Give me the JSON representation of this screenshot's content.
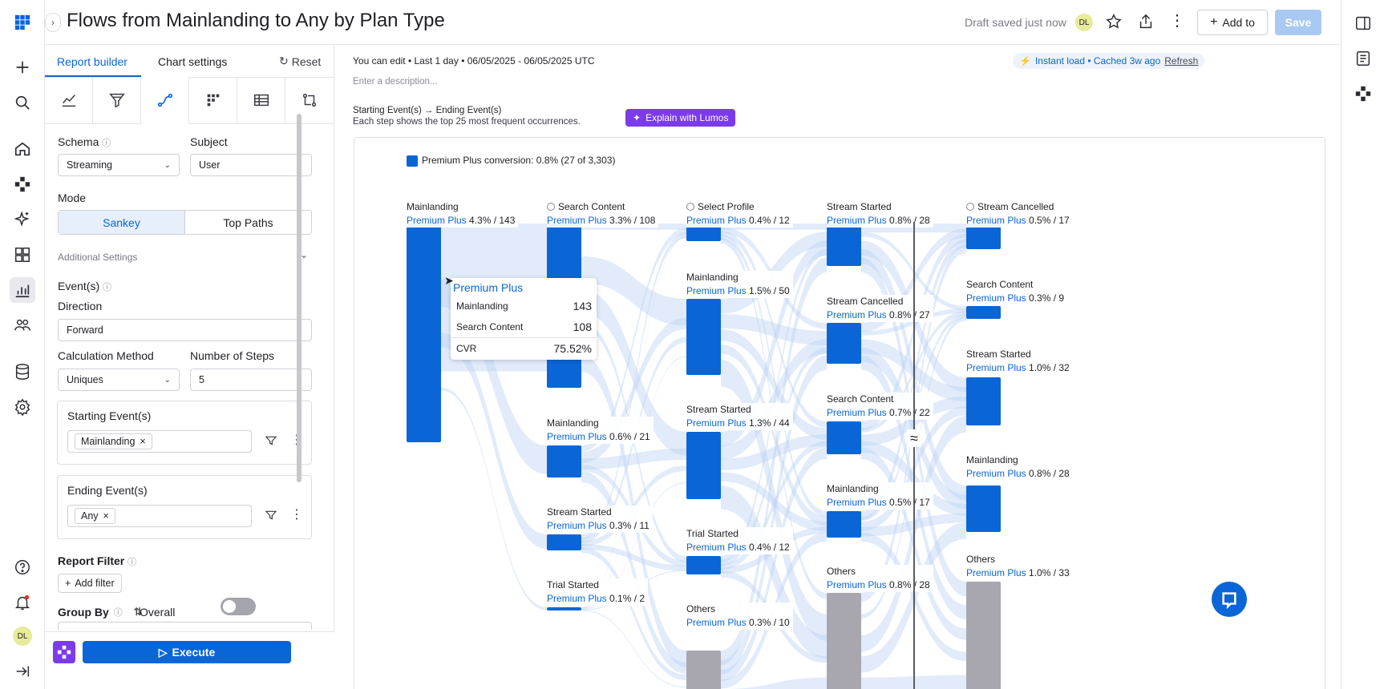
{
  "header": {
    "title": "Flows from Mainlanding to Any by Plan Type",
    "draft_status": "Draft saved just now",
    "avatar_initials": "DL",
    "add_to_label": "Add to",
    "save_label": "Save"
  },
  "leftnav": {
    "icons": [
      "apps-grid-icon",
      "plus-icon",
      "search-icon",
      "home-icon",
      "cluster-icon",
      "sparkle-icon",
      "dashboard-icon",
      "chart-icon",
      "people-icon",
      "database-icon",
      "settings-icon",
      "help-icon",
      "bell-icon",
      "collapse-icon"
    ],
    "avatar_initials": "DL"
  },
  "sidepanel": {
    "tabs": [
      "Report builder",
      "Chart settings"
    ],
    "reset_label": "Reset",
    "schema_label": "Schema",
    "schema_value": "Streaming",
    "subject_label": "Subject",
    "subject_value": "User",
    "mode_label": "Mode",
    "mode_options": [
      "Sankey",
      "Top Paths"
    ],
    "additional_settings": "Additional Settings",
    "events_label": "Event(s)",
    "direction_label": "Direction",
    "direction_value": "Forward",
    "calc_label": "Calculation Method",
    "calc_value": "Uniques",
    "steps_label": "Number of Steps",
    "steps_value": "5",
    "starting_label": "Starting Event(s)",
    "starting_chip": "Mainlanding",
    "ending_label": "Ending Event(s)",
    "ending_chip": "Any",
    "report_filter_label": "Report Filter",
    "add_filter_label": "Add filter",
    "group_by_label": "Group By",
    "overall_label": "Overall",
    "execute_label": "Execute"
  },
  "main": {
    "edit_info": "You can edit • Last 1 day • 06/05/2025 - 06/05/2025 UTC",
    "instant_load": "Instant load • Cached 3w ago",
    "refresh_label": "Refresh",
    "description_placeholder": "Enter a description...",
    "flow_title_a": "Starting Event(s)",
    "flow_title_b": "Ending Event(s)",
    "flow_subtitle": "Each step shows the top 25 most frequent occurrences.",
    "explain_label": "Explain with Lumos"
  },
  "chart_data": {
    "type": "sankey",
    "legend": "Premium Plus conversion: 0.8% (27 of 3,303)",
    "series_name": "Premium Plus",
    "colors": {
      "node": "#0a66d6",
      "others": "#a8a7b0",
      "link": "#bcd3f3"
    },
    "steps": [
      [
        {
          "name": "Mainlanding",
          "pct": "4.3%",
          "count": "143"
        }
      ],
      [
        {
          "name": "Search Content",
          "pct": "3.3%",
          "count": "108"
        },
        {
          "name": "Mainlanding",
          "pct": "0.6%",
          "count": "21"
        },
        {
          "name": "Stream Started",
          "pct": "0.3%",
          "count": "11"
        },
        {
          "name": "Trial Started",
          "pct": "0.1%",
          "count": "2"
        }
      ],
      [
        {
          "name": "Select Profile",
          "pct": "0.4%",
          "count": "12"
        },
        {
          "name": "Mainlanding",
          "pct": "1.5%",
          "count": "50"
        },
        {
          "name": "Stream Started",
          "pct": "1.3%",
          "count": "44"
        },
        {
          "name": "Trial Started",
          "pct": "0.4%",
          "count": "12"
        },
        {
          "name": "Others",
          "pct": "0.3%",
          "count": "10"
        }
      ],
      [
        {
          "name": "Stream Started",
          "pct": "0.8%",
          "count": "28"
        },
        {
          "name": "Stream Cancelled",
          "pct": "0.8%",
          "count": "27"
        },
        {
          "name": "Search Content",
          "pct": "0.7%",
          "count": "22"
        },
        {
          "name": "Mainlanding",
          "pct": "0.5%",
          "count": "17"
        },
        {
          "name": "Others",
          "pct": "0.8%",
          "count": "28"
        }
      ],
      [
        {
          "name": "Stream Cancelled",
          "pct": "0.5%",
          "count": "17"
        },
        {
          "name": "Search Content",
          "pct": "0.3%",
          "count": "9"
        },
        {
          "name": "Stream Started",
          "pct": "1.0%",
          "count": "32"
        },
        {
          "name": "Mainlanding",
          "pct": "0.8%",
          "count": "28"
        },
        {
          "name": "Others",
          "pct": "1.0%",
          "count": "33"
        }
      ]
    ],
    "tooltip": {
      "title": "Premium Plus",
      "rows": [
        {
          "label": "Mainlanding",
          "value": "143"
        },
        {
          "label": "Search Content",
          "value": "108"
        }
      ],
      "cvr_label": "CVR",
      "cvr_value": "75.52%"
    }
  }
}
